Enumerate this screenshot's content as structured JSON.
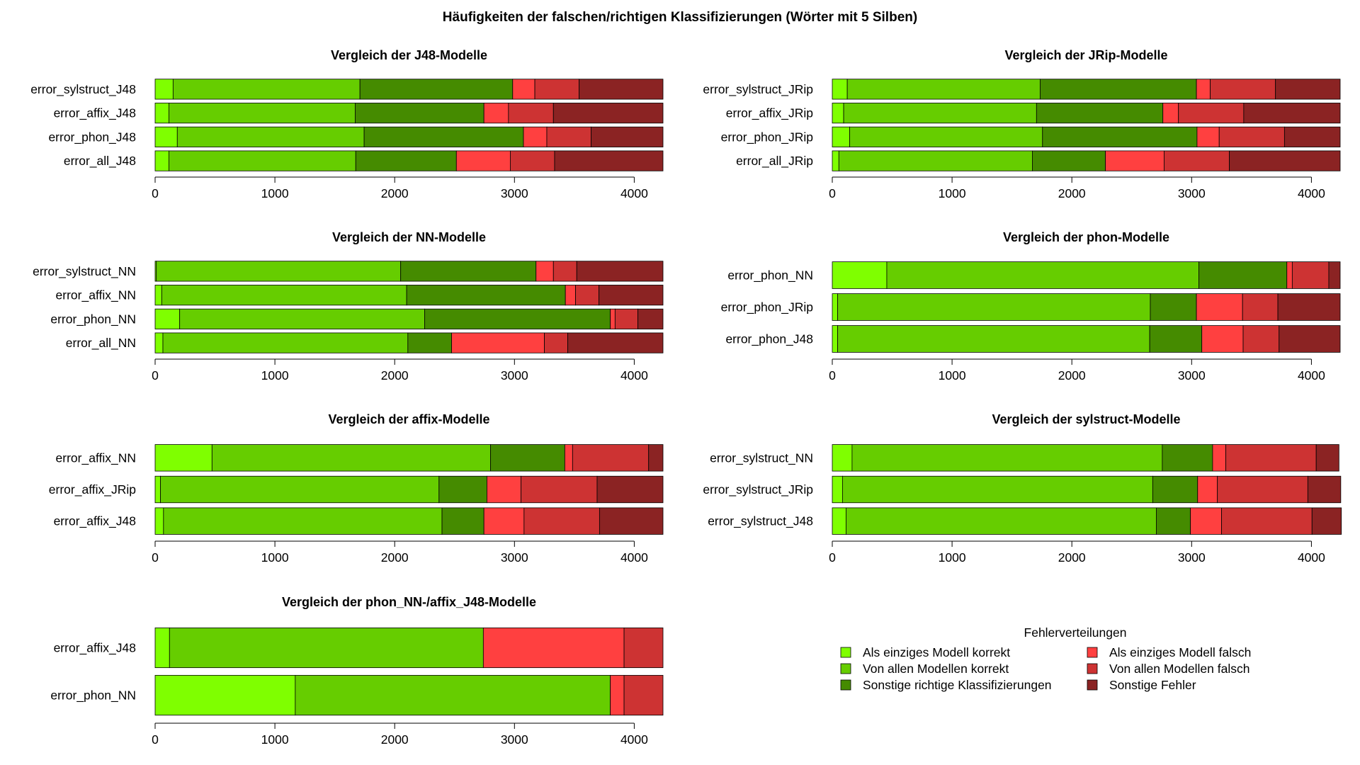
{
  "title": "Häufigkeiten der falschen/richtigen Klassifizierungen (Wörter mit 5 Silben)",
  "colors": {
    "Als einziges Modell korrekt": "#7fff00",
    "Von allen Modellen korrekt": "#66cd00",
    "Sonstige richtige Klassifizierungen": "#458b00",
    "Als einziges Modell falsch": "#ff4040",
    "Von allen Modellen falsch": "#cd3333",
    "Sonstige Fehler": "#8b2323"
  },
  "legend": {
    "title": "Fehlerverteilungen",
    "entries": [
      "Als einziges Modell korrekt",
      "Von allen Modellen korrekt",
      "Sonstige richtige Klassifizierungen",
      "Als einziges Modell falsch",
      "Von allen Modellen falsch",
      "Sonstige Fehler"
    ]
  },
  "chart_data": [
    {
      "type": "bar",
      "orientation": "horizontal",
      "stacked": true,
      "title": "Vergleich der J48-Modelle",
      "xlim": [
        0,
        4240
      ],
      "xticks": [
        0,
        1000,
        2000,
        3000,
        4000
      ],
      "categories": [
        "error_sylstruct_J48",
        "error_affix_J48",
        "error_phon_J48",
        "error_all_J48"
      ],
      "series": [
        {
          "name": "Als einziges Modell korrekt",
          "values": [
            150,
            115,
            185,
            115
          ]
        },
        {
          "name": "Von allen Modellen korrekt",
          "values": [
            1560,
            1555,
            1560,
            1560
          ]
        },
        {
          "name": "Sonstige richtige Klassifizierungen",
          "values": [
            1275,
            1075,
            1330,
            840
          ]
        },
        {
          "name": "Als einziges Modell falsch",
          "values": [
            185,
            205,
            195,
            450
          ]
        },
        {
          "name": "Von allen Modellen falsch",
          "values": [
            370,
            375,
            370,
            370
          ]
        },
        {
          "name": "Sonstige Fehler",
          "values": [
            700,
            915,
            600,
            905
          ]
        }
      ]
    },
    {
      "type": "bar",
      "orientation": "horizontal",
      "stacked": true,
      "title": "Vergleich der JRip-Modelle",
      "xlim": [
        0,
        4240
      ],
      "xticks": [
        0,
        1000,
        2000,
        3000,
        4000
      ],
      "categories": [
        "error_sylstruct_JRip",
        "error_affix_JRip",
        "error_phon_JRip",
        "error_all_JRip"
      ],
      "series": [
        {
          "name": "Als einziges Modell korrekt",
          "values": [
            125,
            95,
            145,
            55
          ]
        },
        {
          "name": "Von allen Modellen korrekt",
          "values": [
            1610,
            1610,
            1610,
            1615
          ]
        },
        {
          "name": "Sonstige richtige Klassifizierungen",
          "values": [
            1305,
            1055,
            1290,
            610
          ]
        },
        {
          "name": "Als einziges Modell falsch",
          "values": [
            115,
            130,
            185,
            490
          ]
        },
        {
          "name": "Von allen Modellen falsch",
          "values": [
            545,
            545,
            545,
            545
          ]
        },
        {
          "name": "Sonstige Fehler",
          "values": [
            540,
            805,
            465,
            925
          ]
        }
      ]
    },
    {
      "type": "bar",
      "orientation": "horizontal",
      "stacked": true,
      "title": "Vergleich der NN-Modelle",
      "xlim": [
        0,
        4240
      ],
      "xticks": [
        0,
        1000,
        2000,
        3000,
        4000
      ],
      "categories": [
        "error_sylstruct_NN",
        "error_affix_NN",
        "error_phon_NN",
        "error_all_NN"
      ],
      "series": [
        {
          "name": "Als einziges Modell korrekt",
          "values": [
            10,
            55,
            205,
            65
          ]
        },
        {
          "name": "Von allen Modellen korrekt",
          "values": [
            2040,
            2045,
            2045,
            2045
          ]
        },
        {
          "name": "Sonstige richtige Klassifizierungen",
          "values": [
            1130,
            1325,
            1550,
            365
          ]
        },
        {
          "name": "Als einziges Modell falsch",
          "values": [
            145,
            85,
            40,
            775
          ]
        },
        {
          "name": "Von allen Modellen falsch",
          "values": [
            195,
            195,
            190,
            195
          ]
        },
        {
          "name": "Sonstige Fehler",
          "values": [
            720,
            535,
            210,
            795
          ]
        }
      ]
    },
    {
      "type": "bar",
      "orientation": "horizontal",
      "stacked": true,
      "title": "Vergleich der phon-Modelle",
      "xlim": [
        0,
        4240
      ],
      "xticks": [
        0,
        1000,
        2000,
        3000,
        4000
      ],
      "categories": [
        "error_phon_NN",
        "error_phon_JRip",
        "error_phon_J48"
      ],
      "series": [
        {
          "name": "Als einziges Modell korrekt",
          "values": [
            455,
            45,
            45
          ]
        },
        {
          "name": "Von allen Modellen korrekt",
          "values": [
            2605,
            2610,
            2605
          ]
        },
        {
          "name": "Sonstige richtige Klassifizierungen",
          "values": [
            735,
            385,
            435
          ]
        },
        {
          "name": "Als einziges Modell falsch",
          "values": [
            45,
            385,
            345
          ]
        },
        {
          "name": "Von allen Modellen falsch",
          "values": [
            305,
            295,
            300
          ]
        },
        {
          "name": "Sonstige Fehler",
          "values": [
            95,
            520,
            510
          ]
        }
      ]
    },
    {
      "type": "bar",
      "orientation": "horizontal",
      "stacked": true,
      "title": "Vergleich der affix-Modelle",
      "xlim": [
        0,
        4240
      ],
      "xticks": [
        0,
        1000,
        2000,
        3000,
        4000
      ],
      "categories": [
        "error_affix_NN",
        "error_affix_JRip",
        "error_affix_J48"
      ],
      "series": [
        {
          "name": "Als einziges Modell korrekt",
          "values": [
            475,
            45,
            70
          ]
        },
        {
          "name": "Von allen Modellen korrekt",
          "values": [
            2325,
            2325,
            2325
          ]
        },
        {
          "name": "Sonstige richtige Klassifizierungen",
          "values": [
            620,
            400,
            350
          ]
        },
        {
          "name": "Als einziges Modell falsch",
          "values": [
            65,
            285,
            335
          ]
        },
        {
          "name": "Von allen Modellen falsch",
          "values": [
            635,
            635,
            630
          ]
        },
        {
          "name": "Sonstige Fehler",
          "values": [
            120,
            550,
            530
          ]
        }
      ]
    },
    {
      "type": "bar",
      "orientation": "horizontal",
      "stacked": true,
      "title": "Vergleich der sylstruct-Modelle",
      "xlim": [
        0,
        4240
      ],
      "xticks": [
        0,
        1000,
        2000,
        3000,
        4000
      ],
      "categories": [
        "error_sylstruct_NN",
        "error_sylstruct_JRip",
        "error_sylstruct_J48"
      ],
      "series": [
        {
          "name": "Als einziges Modell korrekt",
          "values": [
            165,
            85,
            115
          ]
        },
        {
          "name": "Von allen Modellen korrekt",
          "values": [
            2590,
            2590,
            2590
          ]
        },
        {
          "name": "Sonstige richtige Klassifizierungen",
          "values": [
            420,
            375,
            285
          ]
        },
        {
          "name": "Als einziges Modell falsch",
          "values": [
            110,
            165,
            260
          ]
        },
        {
          "name": "Von allen Modellen falsch",
          "values": [
            755,
            755,
            755
          ]
        },
        {
          "name": "Sonstige Fehler",
          "values": [
            190,
            275,
            245
          ]
        }
      ]
    },
    {
      "type": "bar",
      "orientation": "horizontal",
      "stacked": true,
      "title": "Vergleich der phon_NN-/affix_J48-Modelle",
      "xlim": [
        0,
        4240
      ],
      "xticks": [
        0,
        1000,
        2000,
        3000,
        4000
      ],
      "categories": [
        "error_affix_J48",
        "error_phon_NN"
      ],
      "series": [
        {
          "name": "Als einziges Modell korrekt",
          "values": [
            120,
            1170
          ]
        },
        {
          "name": "Von allen Modellen korrekt",
          "values": [
            2620,
            2630
          ]
        },
        {
          "name": "Sonstige richtige Klassifizierungen",
          "values": [
            0,
            0
          ]
        },
        {
          "name": "Als einziges Modell falsch",
          "values": [
            1175,
            115
          ]
        },
        {
          "name": "Von allen Modellen falsch",
          "values": [
            325,
            325
          ]
        },
        {
          "name": "Sonstige Fehler",
          "values": [
            0,
            0
          ]
        }
      ]
    }
  ]
}
